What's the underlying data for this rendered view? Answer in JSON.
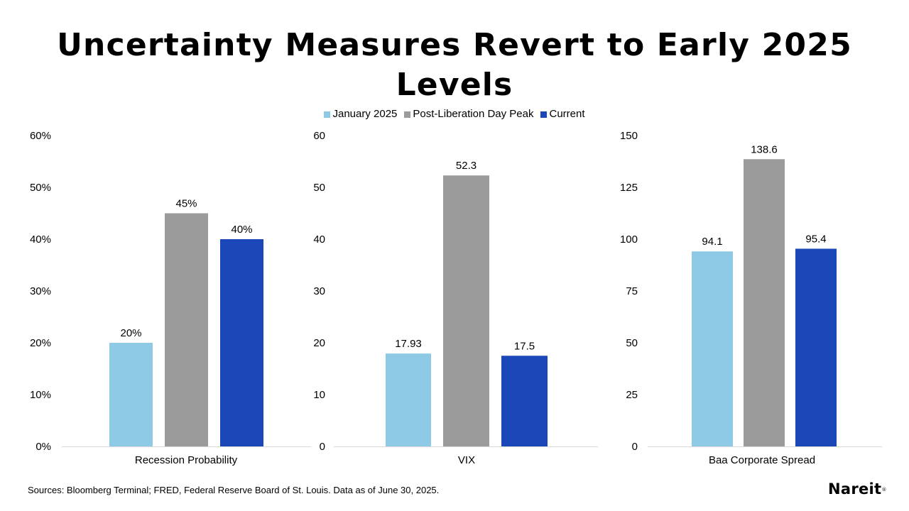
{
  "title": "Uncertainty Measures Revert to Early 2025 Levels",
  "legend": [
    {
      "label": "January 2025",
      "color": "#8ecae6"
    },
    {
      "label": "Post-Liberation Day Peak",
      "color": "#9b9b9b"
    },
    {
      "label": "Current",
      "color": "#1c47b8"
    }
  ],
  "chart_data": [
    {
      "type": "bar",
      "categories": [
        "Recession Probability"
      ],
      "series": [
        {
          "name": "January 2025",
          "values": [
            20
          ],
          "labels": [
            "20%"
          ]
        },
        {
          "name": "Post-Liberation Day Peak",
          "values": [
            45
          ],
          "labels": [
            "45%"
          ]
        },
        {
          "name": "Current",
          "values": [
            40
          ],
          "labels": [
            "40%"
          ]
        }
      ],
      "ylim": [
        0,
        60
      ],
      "yticks": [
        0,
        10,
        20,
        30,
        40,
        50,
        60
      ],
      "ytick_labels": [
        "0%",
        "10%",
        "20%",
        "30%",
        "40%",
        "50%",
        "60%"
      ]
    },
    {
      "type": "bar",
      "categories": [
        "VIX"
      ],
      "series": [
        {
          "name": "January 2025",
          "values": [
            17.93
          ],
          "labels": [
            "17.93"
          ]
        },
        {
          "name": "Post-Liberation Day Peak",
          "values": [
            52.3
          ],
          "labels": [
            "52.3"
          ]
        },
        {
          "name": "Current",
          "values": [
            17.5
          ],
          "labels": [
            "17.5"
          ]
        }
      ],
      "ylim": [
        0,
        60
      ],
      "yticks": [
        0,
        10,
        20,
        30,
        40,
        50,
        60
      ],
      "ytick_labels": [
        "0",
        "10",
        "20",
        "30",
        "40",
        "50",
        "60"
      ]
    },
    {
      "type": "bar",
      "categories": [
        "Baa Corporate Spread"
      ],
      "series": [
        {
          "name": "January 2025",
          "values": [
            94.1
          ],
          "labels": [
            "94.1"
          ]
        },
        {
          "name": "Post-Liberation Day Peak",
          "values": [
            138.6
          ],
          "labels": [
            "138.6"
          ]
        },
        {
          "name": "Current",
          "values": [
            95.4
          ],
          "labels": [
            "95.4"
          ]
        }
      ],
      "ylim": [
        0,
        150
      ],
      "yticks": [
        0,
        25,
        50,
        75,
        100,
        125,
        150
      ],
      "ytick_labels": [
        "0",
        "25",
        "50",
        "75",
        "100",
        "125",
        "150"
      ]
    }
  ],
  "footer": {
    "source": "Sources: Bloomberg Terminal; FRED, Federal Reserve Board of St. Louis. Data as of June 30, 2025.",
    "logo": "Nareit",
    "logo_mark": "®"
  }
}
